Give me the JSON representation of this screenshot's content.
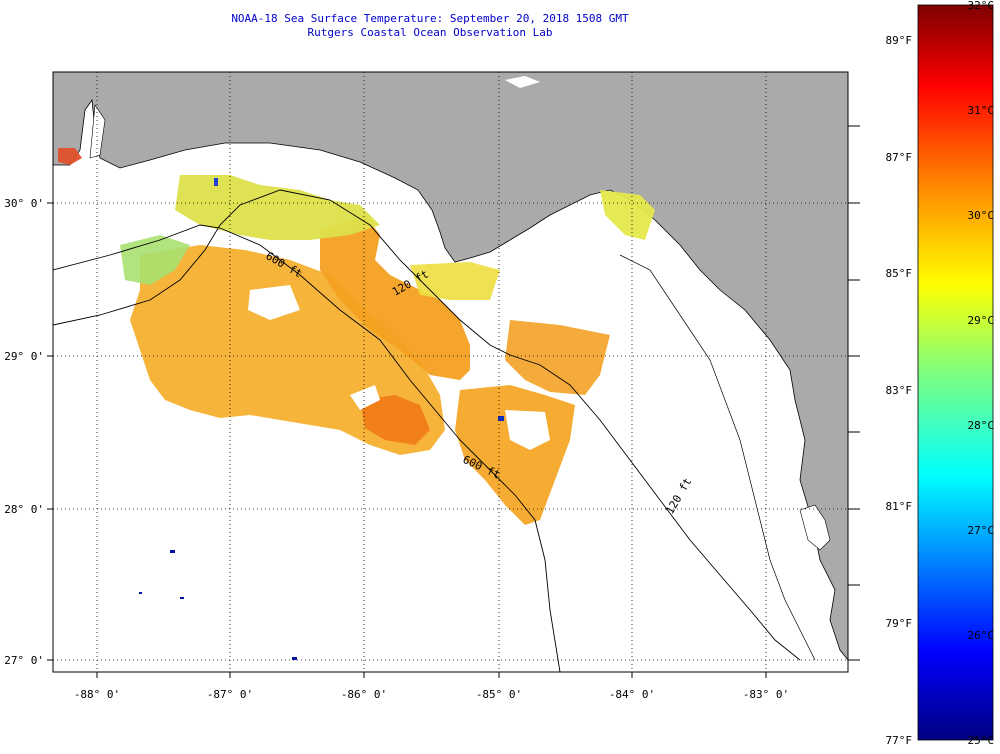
{
  "title": {
    "line1": "NOAA-18 Sea Surface Temperature:  September 20, 2018 1508 GMT",
    "line2": "Rutgers Coastal Ocean Observation Lab"
  },
  "map": {
    "longitude_labels": [
      "-88° 0'",
      "-87° 0'",
      "-86° 0'",
      "-85° 0'",
      "-84° 0'",
      "-83° 0'"
    ],
    "latitude_labels": [
      "30° 0'",
      "29° 0'",
      "28° 0'",
      "27° 0'"
    ],
    "isobath_labels": [
      "600 ft",
      "120 ft",
      "600 ft",
      "120 ft"
    ],
    "colors": {
      "land": "#aaaaaa",
      "water": "#ffffff",
      "frame": "#000000"
    }
  },
  "colorbar": {
    "celsius_labels": [
      "32°C",
      "31°C",
      "30°C",
      "29°C",
      "28°C",
      "27°C",
      "26°C",
      "25°C"
    ],
    "fahrenheit_labels": [
      "89°F",
      "87°F",
      "85°F",
      "83°F",
      "81°F",
      "79°F",
      "77°F"
    ]
  }
}
